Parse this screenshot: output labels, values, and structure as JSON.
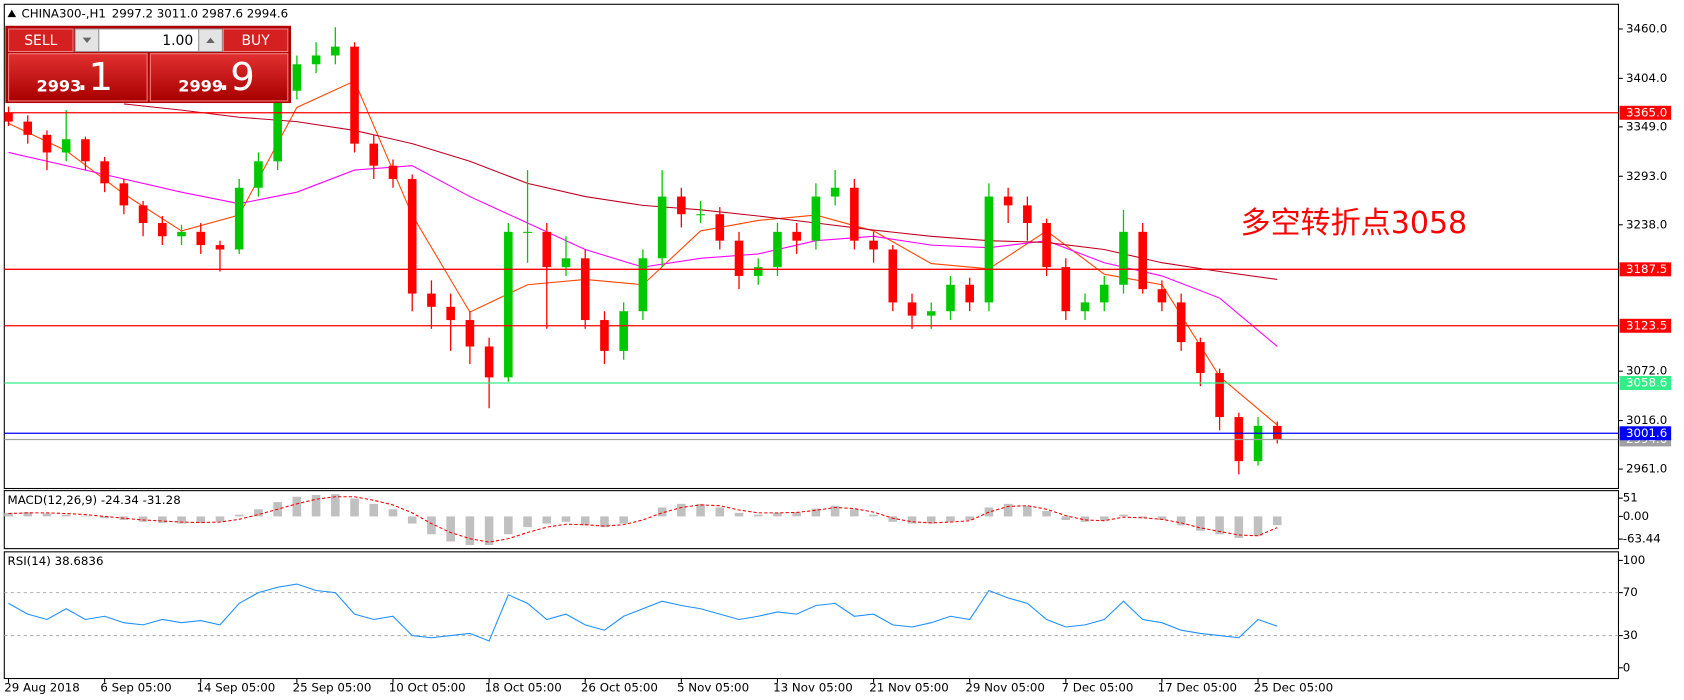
{
  "header": {
    "symbol": "CHINA300-,H1",
    "quote": "2997.2 3011.0 2987.6 2994.6"
  },
  "trade_panel": {
    "sell": "SELL",
    "buy": "BUY",
    "volume": "1.00",
    "sell_price": {
      "small": "2993",
      "big": ".1"
    },
    "buy_price": {
      "small": "2999",
      "big": ".9"
    }
  },
  "chart_data": [
    {
      "type": "candlestick",
      "open": [
        3365,
        3355,
        3340,
        3320,
        3335,
        3310,
        3285,
        3260,
        3240,
        3225,
        3230,
        3215,
        3210,
        3280,
        3310,
        3390,
        3420,
        3430,
        3440,
        3330,
        3305,
        3290,
        3160,
        3145,
        3130,
        3100,
        3065,
        3230,
        3230,
        3190,
        3200,
        3130,
        3095,
        3140,
        3200,
        3270,
        3250,
        3250,
        3220,
        3180,
        3190,
        3230,
        3220,
        3270,
        3280,
        3220,
        3210,
        3150,
        3135,
        3140,
        3170,
        3150,
        3270,
        3260,
        3240,
        3190,
        3140,
        3150,
        3170,
        3230,
        3165,
        3150,
        3105,
        3070,
        3020,
        2970,
        3010
      ],
      "high": [
        3372,
        3362,
        3345,
        3368,
        3338,
        3315,
        3290,
        3265,
        3248,
        3238,
        3240,
        3220,
        3290,
        3320,
        3400,
        3430,
        3445,
        3462,
        3445,
        3340,
        3312,
        3295,
        3175,
        3160,
        3140,
        3110,
        3240,
        3300,
        3240,
        3225,
        3210,
        3140,
        3150,
        3210,
        3300,
        3280,
        3265,
        3258,
        3230,
        3200,
        3240,
        3240,
        3285,
        3300,
        3290,
        3230,
        3215,
        3160,
        3150,
        3180,
        3178,
        3285,
        3280,
        3270,
        3245,
        3200,
        3160,
        3180,
        3255,
        3240,
        3175,
        3160,
        3110,
        3075,
        3025,
        3020,
        3015
      ],
      "low": [
        3350,
        3330,
        3300,
        3310,
        3300,
        3275,
        3250,
        3225,
        3215,
        3215,
        3205,
        3185,
        3205,
        3270,
        3300,
        3380,
        3410,
        3420,
        3320,
        3290,
        3280,
        3140,
        3120,
        3095,
        3080,
        3030,
        3060,
        3195,
        3120,
        3180,
        3120,
        3080,
        3085,
        3130,
        3190,
        3235,
        3240,
        3210,
        3165,
        3170,
        3180,
        3205,
        3210,
        3260,
        3210,
        3195,
        3140,
        3120,
        3120,
        3130,
        3140,
        3140,
        3240,
        3220,
        3180,
        3130,
        3130,
        3140,
        3160,
        3160,
        3140,
        3095,
        3055,
        3005,
        2955,
        2965,
        2990
      ],
      "close": [
        3355,
        3340,
        3320,
        3335,
        3310,
        3285,
        3260,
        3240,
        3225,
        3230,
        3215,
        3210,
        3280,
        3310,
        3390,
        3420,
        3430,
        3440,
        3330,
        3305,
        3290,
        3160,
        3145,
        3130,
        3100,
        3065,
        3230,
        3230,
        3190,
        3200,
        3130,
        3095,
        3140,
        3200,
        3270,
        3250,
        3250,
        3220,
        3180,
        3190,
        3230,
        3220,
        3270,
        3280,
        3220,
        3210,
        3150,
        3135,
        3140,
        3170,
        3150,
        3270,
        3260,
        3240,
        3190,
        3140,
        3150,
        3170,
        3230,
        3165,
        3150,
        3105,
        3070,
        3020,
        2970,
        3010,
        2995
      ],
      "up_color": "#00c800",
      "down_color": "#ff0000",
      "lines": [
        {
          "color": "#ff4500",
          "x": [
            0,
            3,
            6,
            9,
            12,
            15,
            18,
            21,
            24,
            27,
            30,
            33,
            36,
            39,
            42,
            45,
            48,
            51,
            54,
            57,
            60,
            63,
            66
          ],
          "values": [
            3353,
            3322,
            3273,
            3231,
            3249,
            3371,
            3401,
            3249,
            3139,
            3170,
            3176,
            3170,
            3231,
            3243,
            3249,
            3231,
            3194,
            3188,
            3231,
            3182,
            3170,
            3066,
            3011
          ]
        },
        {
          "color": "#ff00ff",
          "x": [
            0,
            3,
            6,
            9,
            12,
            15,
            18,
            21,
            24,
            27,
            30,
            33,
            36,
            39,
            42,
            45,
            48,
            51,
            54,
            57,
            60,
            63,
            66
          ],
          "values": [
            3320,
            3305,
            3290,
            3275,
            3262,
            3275,
            3300,
            3305,
            3270,
            3240,
            3210,
            3190,
            3200,
            3205,
            3220,
            3225,
            3215,
            3212,
            3220,
            3195,
            3180,
            3155,
            3100
          ]
        },
        {
          "color": "#c00020",
          "x": [
            6,
            9,
            12,
            15,
            18,
            21,
            24,
            27,
            30,
            33,
            36,
            39,
            42,
            45,
            48,
            51,
            54,
            57,
            60,
            63,
            66
          ],
          "values": [
            3375,
            3368,
            3360,
            3355,
            3345,
            3330,
            3310,
            3285,
            3270,
            3260,
            3255,
            3248,
            3240,
            3232,
            3225,
            3220,
            3218,
            3210,
            3195,
            3185,
            3176
          ]
        }
      ],
      "levels": [
        {
          "value": 3365.0,
          "label": "3365.0",
          "color": "#ff0000"
        },
        {
          "value": 3187.5,
          "label": "3187.5",
          "color": "#ff0000"
        },
        {
          "value": 3123.5,
          "label": "3123.5",
          "color": "#ff0000"
        },
        {
          "value": 3058.6,
          "label": "3058.6",
          "color": "#33ee88"
        },
        {
          "value": 2994.6,
          "label": "2994.6",
          "color": "#a0a0a0"
        },
        {
          "value": 3001.6,
          "label": "3001.6",
          "color": "#0000ff"
        }
      ],
      "annotation": "多空转折点3058",
      "ylim": [
        2939,
        3488
      ],
      "yticks": [
        {
          "value": 3460,
          "label": "3460.0"
        },
        {
          "value": 3404,
          "label": "3404.0"
        },
        {
          "value": 3349,
          "label": "3349.0"
        },
        {
          "value": 3293,
          "label": "3293.0"
        },
        {
          "value": 3238,
          "label": "3238.0"
        },
        {
          "value": 3072,
          "label": "3072.0"
        },
        {
          "value": 3016,
          "label": "3016.0"
        },
        {
          "value": 2961,
          "label": "2961.0"
        }
      ],
      "xlim": [
        -0.22,
        83.75
      ],
      "xticks": [
        {
          "value": 0,
          "label": "29 Aug 2018"
        },
        {
          "value": 5,
          "label": "6 Sep 05:00"
        },
        {
          "value": 10,
          "label": "14 Sep 05:00"
        },
        {
          "value": 15,
          "label": "25 Sep 05:00"
        },
        {
          "value": 20,
          "label": "10 Oct 05:00"
        },
        {
          "value": 25,
          "label": "18 Oct 05:00"
        },
        {
          "value": 30,
          "label": "26 Oct 05:00"
        },
        {
          "value": 35,
          "label": "5 Nov 05:00"
        },
        {
          "value": 40,
          "label": "13 Nov 05:00"
        },
        {
          "value": 45,
          "label": "21 Nov 05:00"
        },
        {
          "value": 50,
          "label": "29 Nov 05:00"
        },
        {
          "value": 55,
          "label": "7 Dec 05:00"
        },
        {
          "value": 60,
          "label": "17 Dec 05:00"
        },
        {
          "value": 65,
          "label": "25 Dec 05:00"
        }
      ]
    },
    {
      "type": "macd",
      "title": "MACD(12,26,9) -24.34 -31.28",
      "histogram": {
        "color": "#c0c0c0",
        "values": [
          10,
          12,
          8,
          5,
          2,
          -5,
          -10,
          -15,
          -18,
          -20,
          -18,
          -15,
          5,
          20,
          40,
          55,
          60,
          62,
          50,
          35,
          20,
          -20,
          -50,
          -70,
          -80,
          -80,
          -50,
          -30,
          -20,
          -15,
          -25,
          -30,
          -20,
          0,
          25,
          35,
          35,
          25,
          10,
          5,
          10,
          12,
          22,
          30,
          20,
          5,
          -15,
          -20,
          -20,
          -15,
          -10,
          25,
          35,
          30,
          15,
          -10,
          -15,
          -12,
          5,
          -5,
          -10,
          -25,
          -40,
          -50,
          -60,
          -55,
          -24.34
        ]
      },
      "signal": {
        "color": "#ff0000",
        "values": [
          8,
          10,
          10,
          8,
          5,
          0,
          -5,
          -10,
          -13,
          -16,
          -17,
          -16,
          -8,
          5,
          20,
          35,
          48,
          55,
          55,
          45,
          32,
          10,
          -20,
          -45,
          -62,
          -72,
          -62,
          -45,
          -30,
          -22,
          -23,
          -27,
          -23,
          -10,
          10,
          25,
          32,
          30,
          18,
          10,
          10,
          11,
          17,
          25,
          22,
          12,
          -5,
          -15,
          -18,
          -16,
          -12,
          12,
          28,
          30,
          20,
          2,
          -10,
          -12,
          -2,
          -4,
          -8,
          -18,
          -32,
          -42,
          -52,
          -54,
          -31.28
        ]
      },
      "ylim": [
        -90,
        72
      ],
      "yticks": [
        51,
        {
          "value": 0,
          "label": "0.00"
        },
        {
          "value": -63.44,
          "label": "-63.44"
        }
      ]
    },
    {
      "type": "line",
      "title": "RSI(14) 38.6836",
      "color": "#1e90ff",
      "values": [
        60,
        50,
        45,
        55,
        45,
        48,
        42,
        40,
        45,
        42,
        44,
        40,
        60,
        70,
        75,
        78,
        72,
        70,
        50,
        45,
        48,
        30,
        28,
        30,
        32,
        25,
        68,
        60,
        45,
        50,
        40,
        35,
        48,
        55,
        62,
        58,
        55,
        50,
        45,
        48,
        52,
        50,
        58,
        60,
        48,
        50,
        40,
        38,
        42,
        48,
        45,
        72,
        65,
        60,
        45,
        38,
        40,
        45,
        62,
        45,
        42,
        35,
        32,
        30,
        28,
        45,
        38.6836
      ],
      "ylim": [
        -10,
        108
      ],
      "yticks": [
        100,
        70,
        30,
        0
      ],
      "grid_levels": [
        70,
        30
      ]
    }
  ]
}
